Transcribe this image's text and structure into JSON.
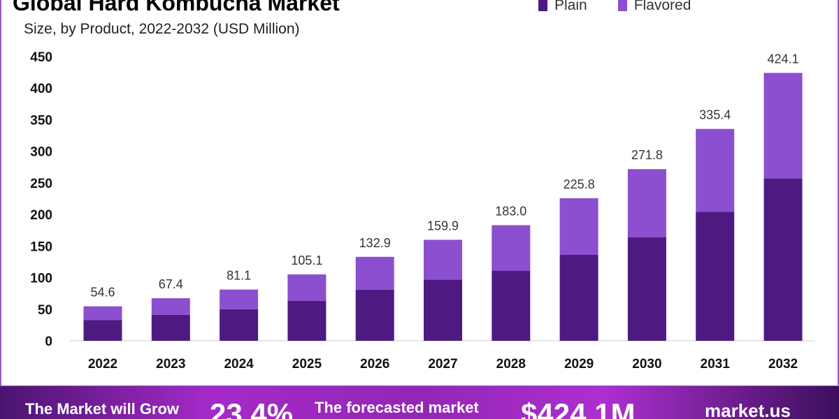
{
  "chart_data": {
    "type": "bar",
    "stacked": true,
    "title": "Global Hard Kombucha Market",
    "subtitle": "Size, by Product, 2022-2032 (USD Million)",
    "categories": [
      "2022",
      "2023",
      "2024",
      "2025",
      "2026",
      "2027",
      "2028",
      "2029",
      "2030",
      "2031",
      "2032"
    ],
    "series": [
      {
        "name": "Plain",
        "color": "#4e1a82",
        "values": [
          33,
          41,
          50,
          63,
          81,
          97,
          111,
          136,
          164,
          204,
          257
        ]
      },
      {
        "name": "Flavored",
        "color": "#8b4fcf",
        "values": [
          21.6,
          26.4,
          31.1,
          42.1,
          51.9,
          62.9,
          72.0,
          89.8,
          107.8,
          131.4,
          167.1
        ]
      }
    ],
    "totals": [
      "54.6",
      "67.4",
      "81.1",
      "105.1",
      "132.9",
      "159.9",
      "183.0",
      "225.8",
      "271.8",
      "335.4",
      "424.1"
    ],
    "yticks": [
      0,
      50,
      100,
      150,
      200,
      250,
      300,
      350,
      400,
      450
    ],
    "ylim": [
      0,
      450
    ],
    "legend_position": "top-right",
    "grid": false
  },
  "banner": {
    "grow_text": "The Market will Grow",
    "cagr": "23.4%",
    "forecast_text": "The forecasted market",
    "forecast_value": "$424.1M",
    "brand": "market.us"
  }
}
